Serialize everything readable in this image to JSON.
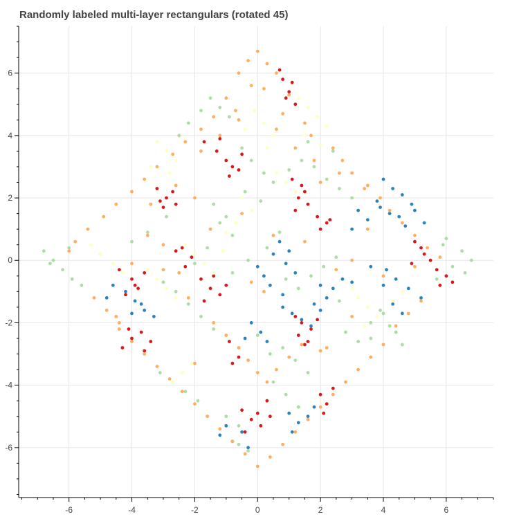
{
  "chart_data": {
    "type": "scatter",
    "title": "Randomly labeled multi-layer rectangulars (rotated 45)",
    "xlabel": "",
    "ylabel": "",
    "xlim": [
      -7.6,
      7.5
    ],
    "ylim": [
      -7.6,
      7.5
    ],
    "xticks": [
      -6,
      -4,
      -2,
      0,
      2,
      4,
      6
    ],
    "yticks": [
      -6,
      -4,
      -2,
      0,
      2,
      4,
      6
    ],
    "grid": true,
    "legend": "none",
    "colors": {
      "orange": "#fdae61",
      "green": "#abdda4",
      "yellow": "#ffffbf",
      "red": "#d7191c",
      "blue": "#2b83ba"
    },
    "series": [
      {
        "color": "red",
        "x": [
          0.8,
          1.0,
          1.2,
          0.7,
          1.1,
          0.9,
          -1.7,
          -1.3,
          -1.0,
          -0.6,
          -0.8,
          -1.2,
          -0.5,
          -0.9,
          -3.2,
          -2.9,
          -2.6,
          -3.0,
          -2.7,
          -3.1,
          1.1,
          1.4,
          1.3,
          1.6,
          1.2,
          1.5,
          1.9,
          2.2,
          2.0,
          2.3,
          -4.4,
          -4.0,
          -3.8,
          -4.2,
          -3.6,
          -3.9,
          -2.4,
          -2.1,
          -2.3,
          -2.6,
          -1.8,
          -1.5,
          -1.2,
          -1.7,
          -1.4,
          -1.0,
          -4.3,
          -4.0,
          -3.7,
          -3.4,
          -4.1,
          -3.6,
          -0.9,
          -0.6,
          -0.8,
          1.2,
          1.4,
          1.7,
          1.3,
          1.6,
          1.9,
          1.5,
          -0.5,
          -0.2,
          0.1,
          0.3,
          -0.4,
          0.0,
          0.4,
          2.0,
          2.2,
          2.4,
          2.1,
          5.0,
          5.3,
          5.5,
          5.7,
          6.0,
          5.2,
          5.8,
          4.9,
          6.2
        ],
        "y": [
          5.8,
          5.4,
          5.0,
          6.1,
          5.7,
          5.2,
          3.8,
          3.5,
          3.2,
          2.9,
          3.0,
          3.9,
          3.4,
          2.7,
          2.3,
          2.0,
          1.8,
          1.7,
          2.2,
          1.9,
          2.6,
          2.4,
          2.0,
          1.8,
          1.6,
          2.2,
          1.4,
          1.2,
          1.0,
          1.3,
          -0.3,
          -0.6,
          -0.9,
          -1.1,
          -0.4,
          -0.8,
          0.4,
          0.1,
          -0.2,
          0.3,
          -0.6,
          -0.9,
          -1.1,
          -1.3,
          -0.5,
          -0.8,
          -2.8,
          -2.5,
          -2.3,
          -2.6,
          -2.2,
          -2.9,
          -2.6,
          -3.1,
          -3.3,
          -1.8,
          -2.0,
          -2.2,
          -2.4,
          -2.6,
          -1.9,
          -2.7,
          -4.8,
          -5.1,
          -5.3,
          -4.5,
          -5.5,
          -4.9,
          -5.0,
          -4.3,
          -4.6,
          -4.1,
          -4.9,
          0.6,
          0.2,
          0.0,
          -0.3,
          -0.5,
          0.4,
          -0.8,
          -0.1,
          -0.7
        ]
      },
      {
        "color": "blue",
        "x": [
          4.0,
          4.3,
          4.6,
          4.9,
          3.8,
          4.2,
          4.5,
          5.0,
          5.3,
          4.7,
          3.2,
          3.5,
          3.9,
          3.0,
          4.1,
          4.4,
          4.8,
          5.2,
          3.6,
          4.0,
          4.3,
          4.6,
          0.7,
          1.0,
          0.9,
          1.2,
          0.5,
          0.2,
          0.0,
          0.4,
          0.8,
          2.0,
          2.4,
          2.7,
          3.0,
          2.2,
          1.8,
          0.8,
          1.1,
          1.4,
          1.7,
          2.0,
          -0.2,
          0.1,
          -0.4,
          0.3,
          -4.6,
          -4.2,
          -3.9,
          -3.6,
          -3.3,
          -4.8,
          -4.0,
          -3.7,
          -1.2,
          -0.8,
          -0.5,
          -0.3,
          -1.0,
          1.0,
          1.3,
          1.6,
          1.8,
          1.1
        ],
        "y": [
          2.6,
          2.3,
          2.1,
          1.8,
          1.9,
          1.5,
          1.4,
          1.6,
          1.2,
          1.1,
          1.6,
          1.3,
          1.7,
          1.0,
          -0.3,
          -0.6,
          -0.9,
          -1.2,
          -0.2,
          -0.8,
          -1.4,
          -1.7,
          0.6,
          0.3,
          -0.1,
          -0.4,
          0.2,
          -0.5,
          -0.2,
          -0.8,
          -1.1,
          -0.8,
          -0.9,
          -0.6,
          -0.7,
          -1.2,
          -1.4,
          -1.5,
          -1.7,
          -1.9,
          -2.1,
          -1.6,
          -2.0,
          -2.3,
          -2.5,
          -2.6,
          -0.8,
          -1.0,
          -1.3,
          -1.6,
          -1.8,
          -1.2,
          -1.7,
          -1.4,
          -5.6,
          -5.8,
          -5.5,
          -6.0,
          -5.3,
          -4.9,
          -5.2,
          -5.0,
          -4.7,
          -5.5
        ]
      },
      {
        "color": "orange",
        "x": [
          0.0,
          -0.3,
          0.3,
          -0.6,
          0.6,
          -0.2,
          0.2,
          -1.0,
          1.0,
          -0.7,
          0.8,
          -1.4,
          1.5,
          -1.8,
          1.7,
          -2.3,
          2.4,
          -2.7,
          2.7,
          -3.2,
          3.0,
          -3.6,
          3.5,
          -4.0,
          3.9,
          -4.5,
          4.2,
          -4.9,
          4.6,
          -5.4,
          5.0,
          -5.8,
          5.4,
          -6.0,
          5.8,
          -2.0,
          2.0,
          -1.5,
          1.5,
          -0.5,
          0.5,
          -3.0,
          3.0,
          -2.5,
          2.5,
          -4.0,
          4.0,
          -3.5,
          3.5,
          -5.0,
          5.0,
          -4.5,
          0.0,
          -0.4,
          0.4,
          -0.8,
          0.8,
          -1.2,
          1.2,
          -1.6,
          1.6,
          -2.0,
          2.0,
          -2.4,
          2.4,
          -2.8,
          2.8,
          -3.2,
          3.2,
          -3.6,
          3.6,
          -4.0,
          4.0,
          -4.4,
          4.4,
          0.0,
          -0.3,
          0.3,
          -0.6,
          0.6,
          -1.0,
          1.0,
          -1.4,
          1.4,
          -2.0,
          2.0,
          0.2,
          -0.2,
          1.8,
          -1.8,
          2.6,
          -2.6,
          3.4,
          -3.4,
          0.6,
          -0.6,
          1.2,
          -1.2,
          -5.2,
          -4.8,
          -4.4,
          5.2,
          4.8,
          4.4,
          -3.0,
          3.0,
          -2.2,
          2.2
        ],
        "y": [
          6.7,
          6.4,
          6.3,
          6.0,
          6.0,
          5.6,
          5.5,
          5.2,
          5.3,
          4.8,
          4.7,
          4.6,
          4.4,
          4.2,
          4.0,
          3.8,
          3.6,
          3.4,
          3.2,
          3.0,
          2.8,
          2.6,
          2.4,
          2.2,
          2.0,
          1.8,
          1.6,
          1.4,
          1.2,
          1.0,
          0.8,
          0.6,
          0.4,
          0.3,
          0.1,
          2.0,
          2.5,
          1.0,
          0.6,
          1.5,
          0.8,
          0.5,
          0.0,
          -0.4,
          -0.3,
          -0.1,
          -0.5,
          0.8,
          1.0,
          0.2,
          -0.2,
          -1.8,
          -6.6,
          -6.2,
          -6.3,
          -5.8,
          -5.9,
          -5.4,
          -5.5,
          -5.0,
          -5.1,
          -4.6,
          -4.7,
          -4.2,
          -4.3,
          -3.8,
          -3.9,
          -3.4,
          -3.5,
          -3.0,
          -3.1,
          -2.6,
          -2.7,
          -2.2,
          -2.3,
          -3.6,
          -3.2,
          -3.9,
          -2.8,
          -3.5,
          -2.4,
          -3.1,
          -2.0,
          -2.7,
          -3.3,
          -2.9,
          -1.0,
          -0.7,
          3.2,
          3.5,
          2.8,
          2.4,
          2.3,
          1.8,
          4.2,
          4.5,
          3.6,
          4.0,
          -1.2,
          -1.6,
          -2.0,
          -1.3,
          -1.7,
          -2.1,
          -0.3,
          -1.8,
          -1.2,
          -2.8
        ]
      },
      {
        "color": "green",
        "x": [
          -6.8,
          -6.5,
          -6.2,
          -5.9,
          -6.6,
          -6.0,
          -5.6,
          6.8,
          6.5,
          6.2,
          5.9,
          6.6,
          6.0,
          5.7,
          -1.5,
          -1.2,
          -0.9,
          -1.8,
          -2.2,
          -2.5,
          -0.5,
          -0.2,
          0.2,
          0.5,
          -0.4,
          0.1,
          -1.0,
          -1.4,
          1.0,
          1.4,
          1.8,
          2.2,
          2.6,
          3.0,
          2.4,
          1.6,
          0.7,
          0.3,
          -0.3,
          -0.8,
          0.9,
          1.3,
          1.7,
          2.1,
          2.5,
          0.8,
          1.2,
          1.6,
          0.4,
          0.0,
          -2.6,
          -2.2,
          -1.8,
          -1.4,
          -3.0,
          2.8,
          3.2,
          3.6,
          4.0,
          2.6,
          -2.3,
          -2.7,
          -3.1,
          -1.9,
          0.5,
          0.9,
          1.3,
          -0.6,
          -0.3,
          -3.5,
          -4.0,
          -2.9,
          3.6,
          4.2,
          3.9,
          -0.8,
          -1.2,
          -1.6,
          -2.0,
          4.6,
          4.4,
          -1.0,
          -0.6
        ],
        "y": [
          0.3,
          0.0,
          -0.3,
          -0.6,
          -0.1,
          0.4,
          -0.8,
          0.0,
          0.3,
          -0.2,
          0.5,
          -0.4,
          0.7,
          -0.6,
          5.2,
          4.9,
          4.6,
          4.8,
          4.4,
          4.0,
          3.6,
          3.2,
          2.8,
          2.5,
          2.2,
          1.9,
          1.4,
          1.8,
          2.9,
          3.2,
          3.0,
          2.6,
          2.3,
          2.0,
          3.5,
          3.8,
          0.9,
          0.4,
          0.0,
          -0.4,
          -0.6,
          -0.9,
          -0.5,
          -0.2,
          0.1,
          -2.8,
          -3.2,
          -3.6,
          -3.0,
          -2.4,
          -1.0,
          -1.4,
          -1.8,
          -2.2,
          -0.7,
          -2.3,
          -2.6,
          -2.0,
          -1.7,
          -1.3,
          -4.2,
          -3.9,
          -3.6,
          -4.5,
          -3.9,
          -4.3,
          -4.7,
          -5.9,
          -6.1,
          0.9,
          0.6,
          1.4,
          -2.5,
          -2.1,
          -1.6,
          0.8,
          1.2,
          0.4,
          -0.1,
          -2.7,
          -2.3,
          -5.0,
          -5.3
        ]
      },
      {
        "color": "yellow",
        "x": [
          1.3,
          1.6,
          1.9,
          2.2,
          1.5,
          2.0,
          -3.2,
          -2.9,
          -2.6,
          -3.4,
          -2.8,
          -0.1,
          0.2,
          0.5,
          -0.4,
          0.3,
          -2.0,
          -1.7,
          -1.4,
          -2.3,
          -1.1,
          -3.2,
          -2.9,
          -2.6,
          -3.5,
          -0.5,
          -0.2,
          3.2,
          3.5,
          3.8,
          3.0,
          -5.0,
          -4.6,
          -4.3,
          -5.3,
          0.6,
          0.9,
          1.2,
          -0.7,
          -1.0,
          4.6,
          4.3,
          3.4,
          -2.4,
          -2.1,
          -2.7
        ],
        "y": [
          5.2,
          4.9,
          4.6,
          4.3,
          4.0,
          3.7,
          3.8,
          3.5,
          3.2,
          3.0,
          2.8,
          4.8,
          4.4,
          4.0,
          4.2,
          3.6,
          0.2,
          -0.1,
          -0.4,
          0.5,
          0.3,
          -0.6,
          -0.9,
          -1.2,
          -0.3,
          2.0,
          1.6,
          -1.2,
          -1.5,
          -1.8,
          -0.9,
          0.2,
          -0.1,
          -0.4,
          0.5,
          2.8,
          2.5,
          2.2,
          1.2,
          0.9,
          -1.0,
          -1.3,
          -2.1,
          -3.6,
          -3.3,
          -3.9
        ]
      }
    ]
  }
}
